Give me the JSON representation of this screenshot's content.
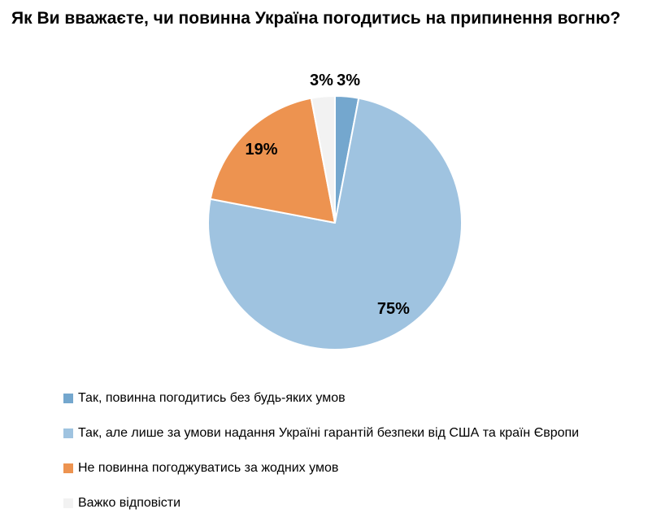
{
  "chart_data": {
    "type": "pie",
    "title": "Як Ви вважаєте, чи повинна Україна погодитись на припинення вогню?",
    "start_angle_deg": 0,
    "direction": "clockwise",
    "legend_position": "bottom-left",
    "background_color": "#ffffff",
    "slice_border_color": "#ffffff",
    "slices": [
      {
        "label": "Так, повинна погодитись без будь-яких умов",
        "value": 3,
        "data_label": "3%",
        "color": "#74A7CE",
        "label_placement": "outside"
      },
      {
        "label": "Так, але лише за умови надання Україні гарантій безпеки від США та країн Європи",
        "value": 75,
        "data_label": "75%",
        "color": "#9FC3E0",
        "label_placement": "inside"
      },
      {
        "label": "Не повинна погоджуватись за жодних умов",
        "value": 19,
        "data_label": "19%",
        "color": "#ED9350",
        "label_placement": "inside"
      },
      {
        "label": "Важко відповісти",
        "value": 3,
        "data_label": "3%",
        "color": "#F2F2F2",
        "label_placement": "outside"
      }
    ]
  }
}
